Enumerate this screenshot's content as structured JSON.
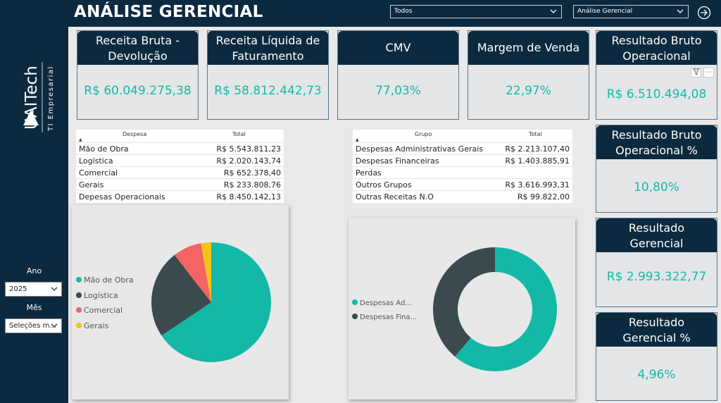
{
  "header": {
    "title": "ANÁLISE GERENCIAL",
    "filter1": "Todos",
    "filter2": "Análise Gerencial"
  },
  "sidebar": {
    "logo_text": "UAITech",
    "logo_sub": "TI Empresarial",
    "ano_label": "Ano",
    "ano_value": "2025",
    "mes_label": "Mês",
    "mes_value": "Seleções m..."
  },
  "kpis": {
    "receita_bruta": {
      "title1": "Receita Bruta -",
      "title2": "Devolução",
      "value": "R$ 60.049.275,38"
    },
    "receita_liquida": {
      "title1": "Receita Líquida de",
      "title2": "Faturamento",
      "value": "R$ 58.812.442,73"
    },
    "cmv": {
      "title": "CMV",
      "value": "77,03%"
    },
    "margem": {
      "title": "Margem de Venda",
      "value": "22,97%"
    },
    "resultado_bruto": {
      "title1": "Resultado Bruto",
      "title2": "Operacional",
      "value": "R$ 6.510.494,08"
    },
    "resultado_bruto_pct": {
      "title1": "Resultado Bruto",
      "title2": "Operacional %",
      "value": "10,80%"
    },
    "resultado_gerencial": {
      "title1": "Resultado",
      "title2": "Gerencial",
      "value": "R$ 2.993.322,77"
    },
    "resultado_gerencial_pct": {
      "title1": "Resultado",
      "title2": "Gerencial %",
      "value": "4,96%"
    }
  },
  "table1": {
    "col1": "Despesa",
    "col2": "Total",
    "rows": [
      {
        "label": "Mão de Obra",
        "value": "R$ 5.543.811,23"
      },
      {
        "label": "Logística",
        "value": "R$ 2.020.143,74"
      },
      {
        "label": "Comercial",
        "value": "R$ 652.378,40"
      },
      {
        "label": "Gerais",
        "value": "R$ 233.808,76"
      },
      {
        "label": "Depesas Operacionais",
        "value": "R$ 8.450.142,13"
      }
    ]
  },
  "table2": {
    "col1": "Grupo",
    "col2": "Total",
    "rows": [
      {
        "label": "Despesas Administrativas Gerais",
        "value": "R$ 2.213.107,40"
      },
      {
        "label": "Despesas Financeiras",
        "value": "R$ 1.403.885,91"
      },
      {
        "label": "Perdas",
        "value": ""
      },
      {
        "label": "Outros Grupos",
        "value": "R$ 3.616.993,31"
      },
      {
        "label": "Outras Receitas N.O",
        "value": "R$ 99.822,00"
      }
    ]
  },
  "colors": {
    "navy": "#0c2a3f",
    "teal": "#14b8a6",
    "dark": "#3b4a4d",
    "red": "#f46464",
    "yellow": "#f2c417"
  },
  "chart_data": [
    {
      "type": "pie",
      "categories": [
        "Mão de Obra",
        "Logística",
        "Comercial",
        "Gerais"
      ],
      "values": [
        5543811.23,
        2020143.74,
        652378.4,
        233808.76
      ],
      "colors": [
        "#14b8a6",
        "#3b4a4d",
        "#f46464",
        "#f2c417"
      ],
      "legend": "left"
    },
    {
      "type": "pie",
      "donut": true,
      "categories": [
        "Despesas Ad...",
        "Despesas Fina..."
      ],
      "values": [
        2213107.4,
        1403885.91
      ],
      "colors": [
        "#14b8a6",
        "#3b4a4d"
      ],
      "legend": "left"
    }
  ]
}
